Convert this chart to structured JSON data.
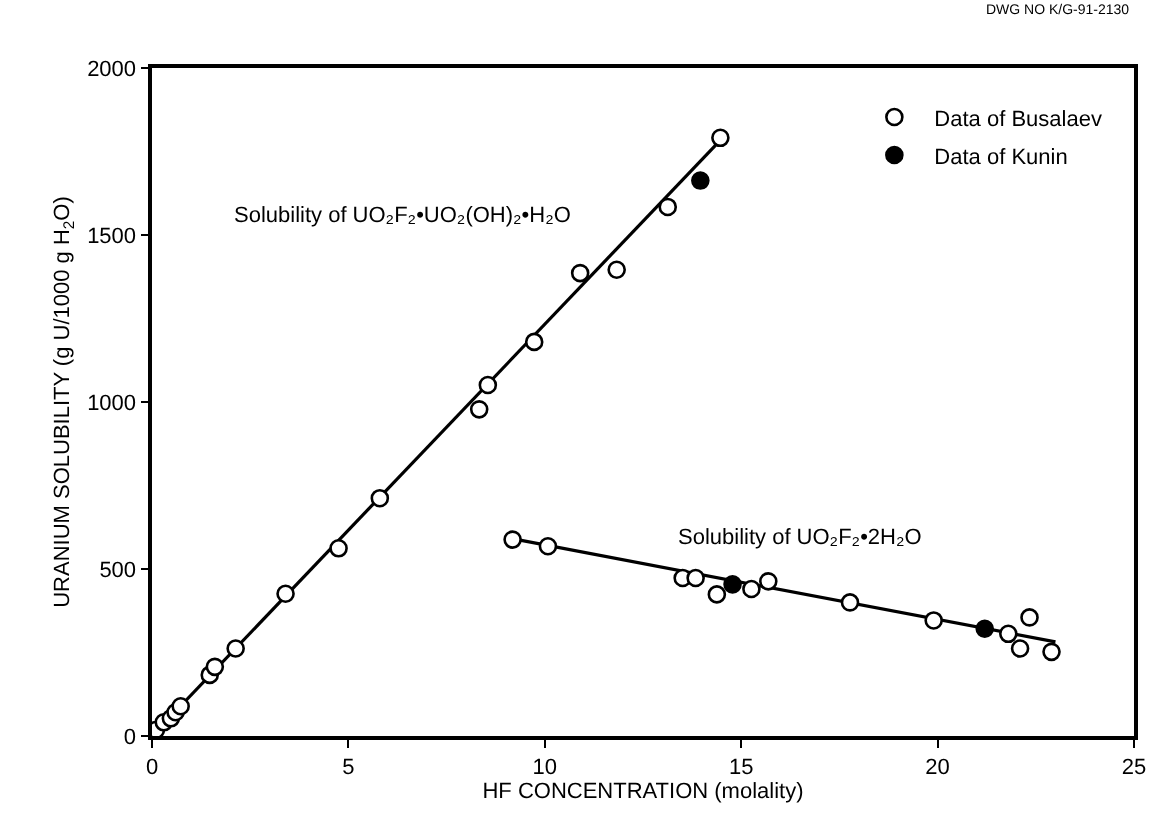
{
  "chart_data": {
    "type": "scatter",
    "xlabel": "HF CONCENTRATION (molality)",
    "ylabel": "URANIUM SOLUBILITY (g U/1000 g H$_{2}$O)",
    "xlim": [
      0,
      25
    ],
    "xticks": [
      0,
      5,
      10,
      15,
      20,
      25
    ],
    "ylim": [
      0,
      2000
    ],
    "yticks": [
      0,
      500,
      1000,
      1500,
      2000
    ],
    "legend": "top right",
    "series": [
      {
        "type": "line",
        "marker": "none",
        "color": "#000000",
        "x": [
          0,
          14.6
        ],
        "values": [
          0,
          1800
        ]
      },
      {
        "type": "line",
        "marker": "none",
        "color": "#000000",
        "x": [
          9.2,
          23.0
        ],
        "values": [
          590,
          282
        ]
      },
      {
        "name": "Data of Busalaev",
        "marker": "circle",
        "color": "#ffffff",
        "x": [
          0.1,
          0.3,
          0.48,
          0.6,
          0.73,
          1.47,
          1.6,
          2.13,
          3.4,
          4.75,
          5.8,
          8.33,
          8.55,
          9.18,
          9.73,
          10.08,
          10.9,
          11.83,
          13.13,
          13.51,
          13.84,
          14.38,
          14.47,
          15.26,
          15.69,
          17.77,
          19.9,
          21.8,
          22.1,
          22.34,
          22.9
        ],
        "values": [
          18,
          41,
          53,
          71,
          89,
          183,
          207,
          262,
          426,
          562,
          712,
          978,
          1051,
          588,
          1180,
          568,
          1386,
          1396,
          1584,
          473,
          473,
          424,
          1791,
          440,
          463,
          400,
          346,
          306,
          262,
          355,
          252
        ]
      },
      {
        "name": "Data of Kunin",
        "marker": "circle",
        "color": "#000000",
        "x": [
          13.96,
          14.78,
          21.2
        ],
        "values": [
          1663,
          454,
          321
        ]
      }
    ],
    "annotations": [
      "Solubility of UO₂F₂•UO₂(OH)₂•H₂O",
      "Solubility of UO₂F₂•2H₂O",
      "DWG NO K/G-91-2130"
    ]
  }
}
